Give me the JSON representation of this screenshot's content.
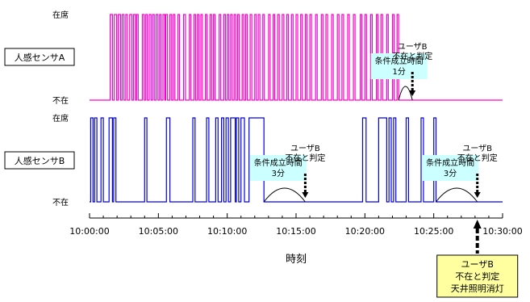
{
  "chart_data": {
    "type": "line",
    "xlabel": "時刻",
    "xlim": [
      "10:00:00",
      "10:30:00"
    ],
    "x_ticks": [
      "10:00:00",
      "10:05:00",
      "10:10:00",
      "10:15:00",
      "10:20:00",
      "10:25:00",
      "10:30:00"
    ],
    "y_states": [
      "不在",
      "在席"
    ],
    "series": [
      {
        "name": "人感センサA",
        "color": "#ff00cc",
        "states": [
          "在席",
          "不在"
        ],
        "on_intervals": [
          [
            "10:01:30",
            "10:01:40"
          ],
          [
            "10:01:48",
            "10:01:58"
          ],
          [
            "10:02:05",
            "10:02:15"
          ],
          [
            "10:02:22",
            "10:02:30"
          ],
          [
            "10:02:38",
            "10:02:45"
          ],
          [
            "10:02:55",
            "10:03:05"
          ],
          [
            "10:03:12",
            "10:03:20"
          ],
          [
            "10:03:25",
            "10:03:32"
          ],
          [
            "10:03:50",
            "10:03:58"
          ],
          [
            "10:04:05",
            "10:04:12"
          ],
          [
            "10:04:20",
            "10:04:28"
          ],
          [
            "10:04:35",
            "10:04:42"
          ],
          [
            "10:04:50",
            "10:04:58"
          ],
          [
            "10:05:05",
            "10:05:12"
          ],
          [
            "10:05:20",
            "10:05:28"
          ],
          [
            "10:05:32",
            "10:05:40"
          ],
          [
            "10:05:50",
            "10:05:58"
          ],
          [
            "10:06:05",
            "10:06:12"
          ],
          [
            "10:06:25",
            "10:06:32"
          ],
          [
            "10:06:50",
            "10:06:58"
          ],
          [
            "10:07:15",
            "10:07:22"
          ],
          [
            "10:07:35",
            "10:07:42"
          ],
          [
            "10:07:50",
            "10:07:57"
          ],
          [
            "10:08:05",
            "10:08:12"
          ],
          [
            "10:08:25",
            "10:08:32"
          ],
          [
            "10:08:45",
            "10:08:52"
          ],
          [
            "10:09:00",
            "10:09:07"
          ],
          [
            "10:09:25",
            "10:09:32"
          ],
          [
            "10:09:45",
            "10:09:52"
          ],
          [
            "10:10:00",
            "10:10:07"
          ],
          [
            "10:10:15",
            "10:10:22"
          ],
          [
            "10:10:30",
            "10:10:37"
          ],
          [
            "10:10:45",
            "10:10:52"
          ],
          [
            "10:11:05",
            "10:11:12"
          ],
          [
            "10:11:20",
            "10:11:27"
          ],
          [
            "10:11:40",
            "10:11:47"
          ],
          [
            "10:12:00",
            "10:12:07"
          ],
          [
            "10:12:15",
            "10:12:22"
          ],
          [
            "10:12:35",
            "10:12:42"
          ],
          [
            "10:13:00",
            "10:13:07"
          ],
          [
            "10:13:20",
            "10:13:27"
          ],
          [
            "10:13:40",
            "10:13:47"
          ],
          [
            "10:14:00",
            "10:14:07"
          ],
          [
            "10:14:20",
            "10:14:27"
          ],
          [
            "10:14:40",
            "10:14:47"
          ],
          [
            "10:15:00",
            "10:15:07"
          ],
          [
            "10:15:20",
            "10:15:27"
          ],
          [
            "10:15:40",
            "10:15:47"
          ],
          [
            "10:16:00",
            "10:16:07"
          ],
          [
            "10:16:25",
            "10:16:32"
          ],
          [
            "10:16:50",
            "10:16:57"
          ],
          [
            "10:17:10",
            "10:17:17"
          ],
          [
            "10:17:35",
            "10:17:42"
          ],
          [
            "10:18:00",
            "10:18:07"
          ],
          [
            "10:18:20",
            "10:18:27"
          ],
          [
            "10:18:45",
            "10:18:52"
          ],
          [
            "10:19:10",
            "10:19:17"
          ],
          [
            "10:19:40",
            "10:19:47"
          ],
          [
            "10:20:00",
            "10:20:07"
          ],
          [
            "10:20:25",
            "10:20:32"
          ],
          [
            "10:20:50",
            "10:20:57"
          ],
          [
            "10:21:10",
            "10:21:17"
          ],
          [
            "10:21:35",
            "10:21:42"
          ],
          [
            "10:22:00",
            "10:22:07"
          ],
          [
            "10:22:20",
            "10:22:27"
          ]
        ]
      },
      {
        "name": "人感センサB",
        "color": "#0000ee",
        "states": [
          "在席",
          "不在"
        ],
        "on_intervals": [
          [
            "10:00:05",
            "10:00:15"
          ],
          [
            "10:00:22",
            "10:00:32"
          ],
          [
            "10:00:50",
            "10:01:00"
          ],
          [
            "10:01:25",
            "10:01:40"
          ],
          [
            "10:01:45",
            "10:01:55"
          ],
          [
            "10:04:00",
            "10:04:10"
          ],
          [
            "10:05:35",
            "10:05:50"
          ],
          [
            "10:07:30",
            "10:07:40"
          ],
          [
            "10:08:30",
            "10:08:40"
          ],
          [
            "10:09:10",
            "10:09:20"
          ],
          [
            "10:09:35",
            "10:09:45"
          ],
          [
            "10:09:55",
            "10:10:05"
          ],
          [
            "10:10:15",
            "10:10:35"
          ],
          [
            "10:10:40",
            "10:10:50"
          ],
          [
            "10:11:00",
            "10:11:15"
          ],
          [
            "10:11:35",
            "10:12:40"
          ],
          [
            "10:19:50",
            "10:20:05"
          ],
          [
            "10:21:00",
            "10:21:35"
          ],
          [
            "10:21:45",
            "10:21:55"
          ],
          [
            "10:22:05",
            "10:22:15"
          ],
          [
            "10:23:00",
            "10:23:10"
          ],
          [
            "10:24:05",
            "10:24:15"
          ],
          [
            "10:25:00",
            "10:25:10"
          ]
        ]
      }
    ],
    "annotations": [
      {
        "name": "condition-a",
        "text": [
          "条件成立時間",
          "1分"
        ],
        "start": "10:22:27",
        "end": "10:23:27",
        "panel": "A"
      },
      {
        "name": "judge-a",
        "text": [
          "ユーザB",
          "不在と判定"
        ],
        "time": "10:23:27",
        "panel": "A"
      },
      {
        "name": "condition-b1",
        "text": [
          "条件成立時間",
          "3分"
        ],
        "start": "10:12:40",
        "end": "10:15:40",
        "panel": "B"
      },
      {
        "name": "judge-b1",
        "text": [
          "ユーザB",
          "不在と判定"
        ],
        "time": "10:15:40",
        "panel": "B"
      },
      {
        "name": "condition-b2",
        "text": [
          "条件成立時間",
          "3分"
        ],
        "start": "10:25:10",
        "end": "10:28:10",
        "panel": "B"
      },
      {
        "name": "judge-b2",
        "text": [
          "ユーザB",
          "不在と判定"
        ],
        "time": "10:28:10",
        "panel": "B"
      },
      {
        "name": "final",
        "text": [
          "ユーザB",
          "不在と判定",
          "天井照明消灯"
        ],
        "time": "10:28:10",
        "panel": "axis"
      }
    ],
    "colors": {
      "callout_bg": "#ccffff",
      "final_bg": "#ffffa0",
      "axis": "#000000"
    }
  }
}
